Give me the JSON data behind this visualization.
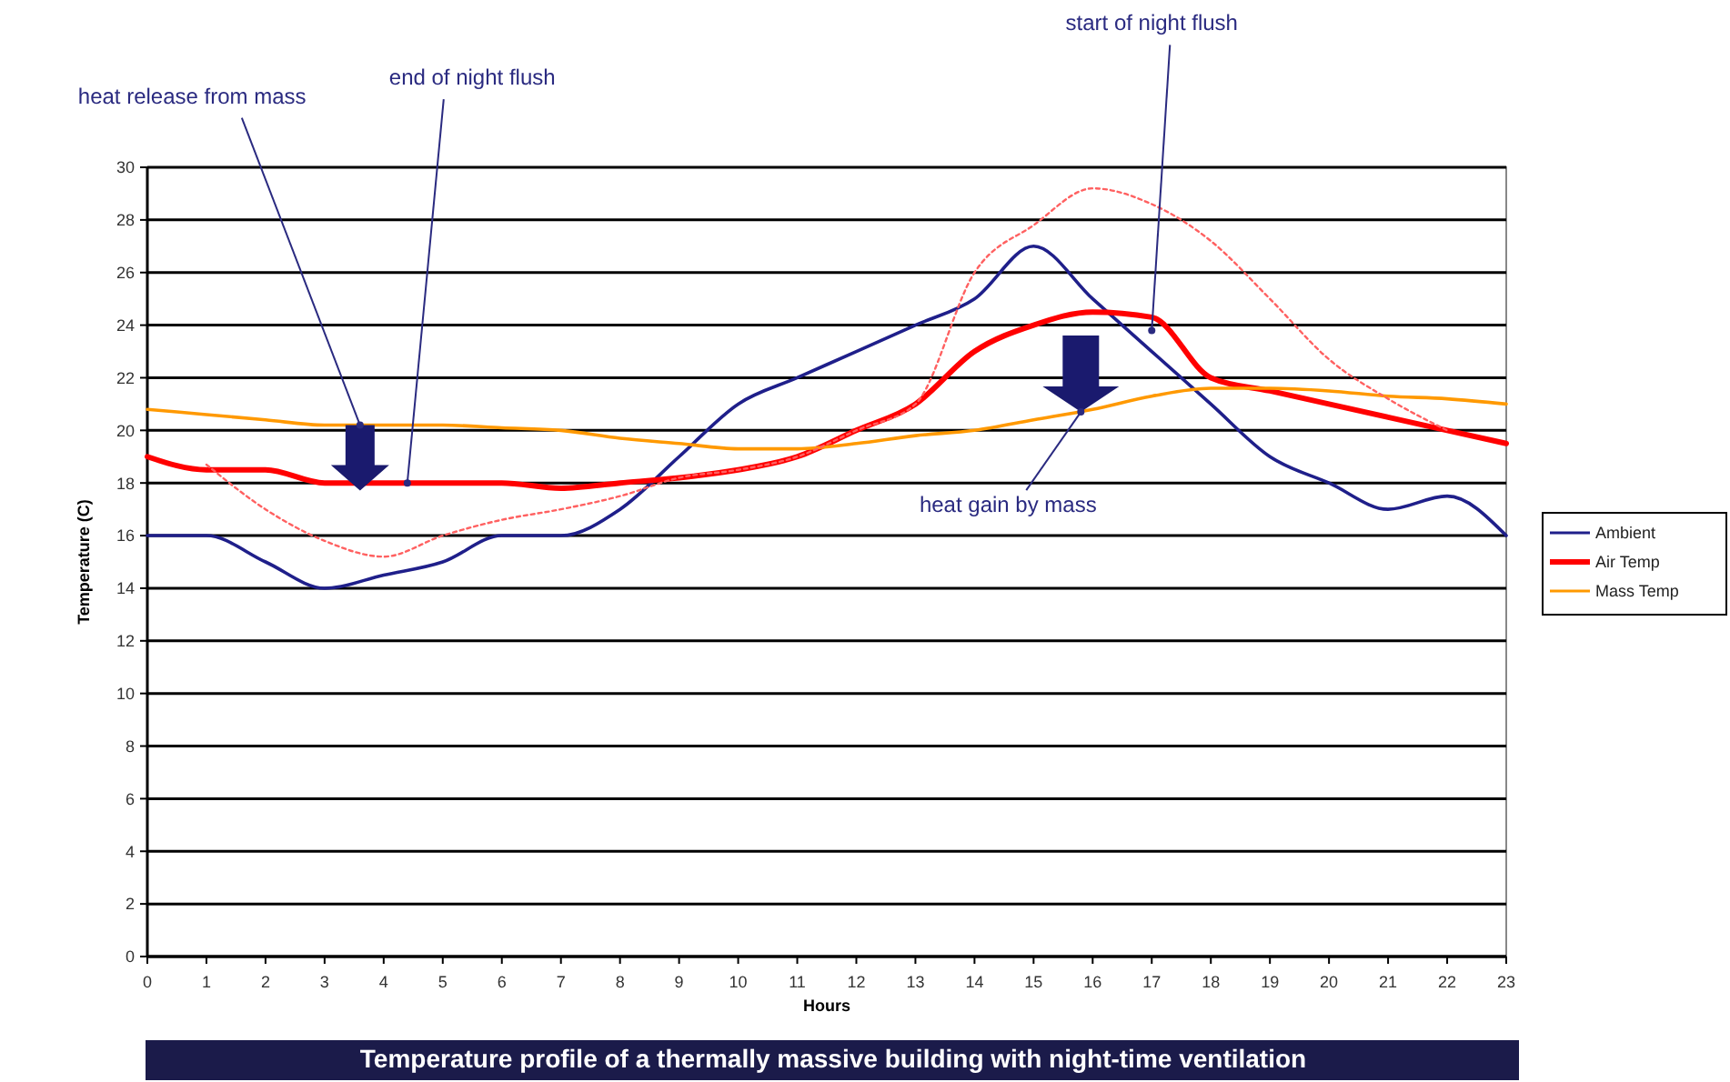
{
  "chart_data": {
    "type": "line",
    "title": "Temperature profile of a thermally massive building with night-time ventilation",
    "xlabel": "Hours",
    "ylabel": "Temperature (C)",
    "x": [
      0,
      1,
      2,
      3,
      4,
      5,
      6,
      7,
      8,
      9,
      10,
      11,
      12,
      13,
      14,
      15,
      16,
      17,
      18,
      19,
      20,
      21,
      22,
      23
    ],
    "xlim": [
      0,
      23
    ],
    "xticks": [
      0,
      1,
      2,
      3,
      4,
      5,
      6,
      7,
      8,
      9,
      10,
      11,
      12,
      13,
      14,
      15,
      16,
      17,
      18,
      19,
      20,
      21,
      22,
      23
    ],
    "ylim": [
      0,
      30
    ],
    "yticks": [
      0,
      2,
      4,
      6,
      8,
      10,
      12,
      14,
      16,
      18,
      20,
      22,
      24,
      26,
      28,
      30
    ],
    "grid": "y",
    "legend": "right",
    "marker": "none",
    "series": [
      {
        "name": "Ambient",
        "color": "#1f1f8a",
        "values": [
          16,
          16,
          15,
          14,
          14.5,
          15,
          16,
          16,
          17,
          19,
          21,
          22,
          23,
          24,
          25,
          27,
          25,
          23,
          21,
          19,
          18,
          17,
          17.5,
          16
        ]
      },
      {
        "name": "Air Temp",
        "color": "#ff0000",
        "values": [
          19,
          18.5,
          18.5,
          18,
          18,
          18,
          18,
          17.8,
          18,
          18.2,
          18.5,
          19,
          20,
          21,
          23,
          24,
          24.5,
          24.3,
          22,
          21.5,
          21,
          20.5,
          20,
          19.5
        ]
      },
      {
        "name": "Mass Temp",
        "color": "#ff9900",
        "values": [
          20.8,
          20.6,
          20.4,
          20.2,
          20.2,
          20.2,
          20.1,
          20,
          19.7,
          19.5,
          19.3,
          19.3,
          19.5,
          19.8,
          20,
          20.4,
          20.8,
          21.3,
          21.6,
          21.6,
          21.5,
          21.3,
          21.2,
          21
        ]
      },
      {
        "color": "#ff6060",
        "line_style": "dotted",
        "x": [
          1,
          2,
          3,
          4,
          5,
          6,
          7,
          8,
          9,
          10,
          11,
          12,
          13,
          14,
          15,
          16,
          17,
          18,
          19,
          20,
          21,
          22
        ],
        "values": [
          18.7,
          17,
          15.8,
          15.2,
          16,
          16.6,
          17,
          17.5,
          18.2,
          18.5,
          19,
          20,
          21,
          26,
          27.8,
          29.2,
          28.6,
          27.2,
          25,
          22.7,
          21.2,
          20
        ]
      }
    ],
    "annotations": [
      {
        "text": "heat release from mass",
        "x": 3.6,
        "y": 20.2
      },
      {
        "text": "end of night flush",
        "x": 4.4,
        "y": 18
      },
      {
        "text": "start of night flush",
        "x": 17,
        "y": 23.8
      },
      {
        "text": "heat gain by  mass",
        "x": 15.8,
        "y": 20.7
      }
    ]
  }
}
